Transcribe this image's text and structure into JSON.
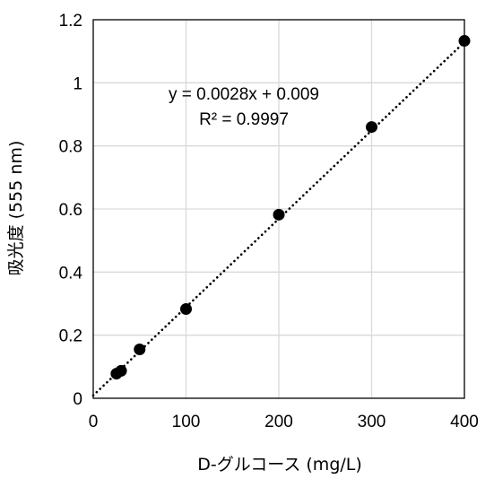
{
  "chart_data": {
    "type": "scatter",
    "title": "",
    "xlabel": "D-グルコース (mg/L)",
    "ylabel": "吸光度 (555 nm)",
    "xlim": [
      0,
      400
    ],
    "ylim": [
      0,
      1.2
    ],
    "x_ticks": [
      "0",
      "100",
      "200",
      "300",
      "400"
    ],
    "y_ticks": [
      "0",
      "0.2",
      "0.4",
      "0.6",
      "0.8",
      "1",
      "1.2"
    ],
    "grid": true,
    "series": [
      {
        "x": [
          25,
          30,
          50,
          100,
          200,
          300,
          400
        ],
        "y": [
          0.078,
          0.087,
          0.155,
          0.283,
          0.582,
          0.86,
          1.133
        ],
        "marker_color": "#000000"
      }
    ],
    "trendline": {
      "type": "linear",
      "slope": 0.0028,
      "intercept": 0.009,
      "style": "dotted",
      "color": "#000000"
    },
    "equation_label": "y = 0.0028x + 0.009",
    "r2_label": "R² = 0.9997",
    "grid_color": "#d9d9d9"
  }
}
